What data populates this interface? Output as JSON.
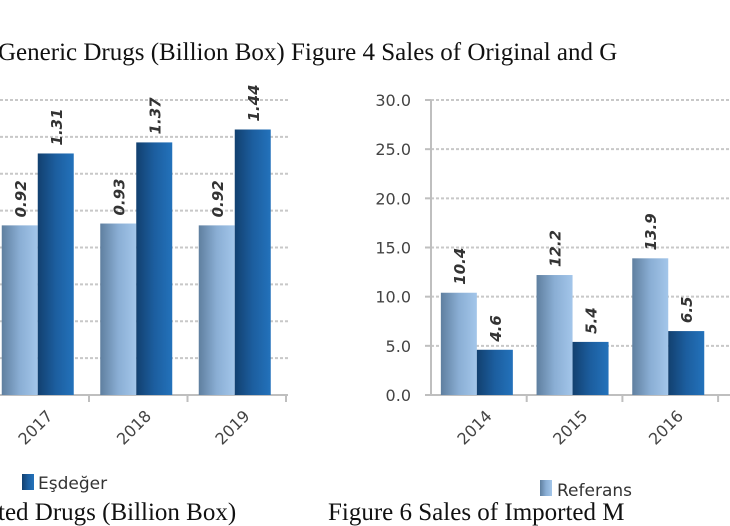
{
  "captions": {
    "top": "Generic Drugs (Billion Box) Figure 4 Sales of Original and G",
    "bottom_left": "ted Drugs (Billion Box)",
    "bottom_right": "Figure 6 Sales of Imported M"
  },
  "colors": {
    "light_series": "#8fb4dc",
    "dark_series": "#1f67ad",
    "grid": "#c8c8c8",
    "axis": "#bfbfbf"
  },
  "chart_data": [
    {
      "type": "bar",
      "categories": [
        "2017",
        "2018",
        "2019"
      ],
      "series": [
        {
          "values": [
            0.92,
            0.93,
            0.92
          ]
        },
        {
          "name": "Eşdeğer",
          "values": [
            1.31,
            1.37,
            1.44
          ]
        }
      ],
      "ylim": [
        0,
        1.6
      ],
      "grid": true,
      "legend": "bottom",
      "legend_entries": [
        "Eşdeğer"
      ]
    },
    {
      "type": "bar",
      "categories": [
        "2014",
        "2015",
        "2016"
      ],
      "series": [
        {
          "name": "Referans",
          "values": [
            10.4,
            12.2,
            13.9
          ]
        },
        {
          "values": [
            4.6,
            5.4,
            6.5
          ]
        }
      ],
      "yticks": [
        "0.0",
        "5.0",
        "10.0",
        "15.0",
        "20.0",
        "25.0",
        "30.0"
      ],
      "ylim": [
        0,
        30
      ],
      "grid": true,
      "legend": "bottom",
      "legend_entries": [
        "Referans"
      ]
    }
  ]
}
